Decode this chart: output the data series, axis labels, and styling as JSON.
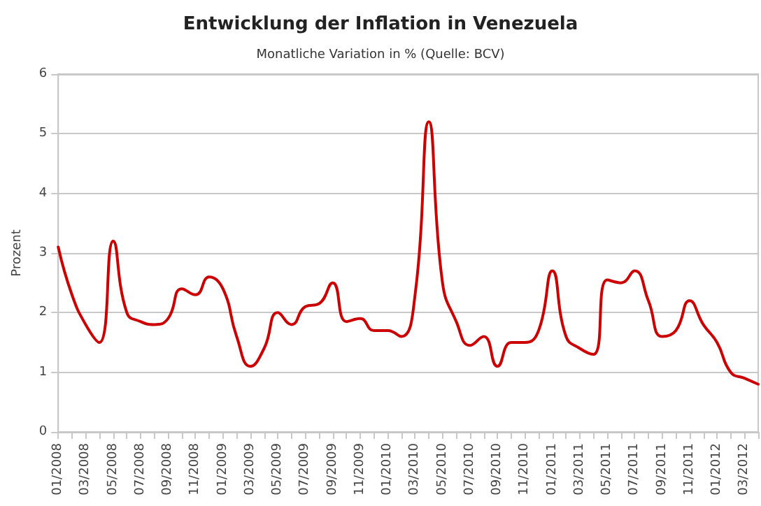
{
  "chart_data": {
    "type": "line",
    "title": "Entwicklung der Inflation in Venezuela",
    "subtitle": "Monatliche Variation in % (Quelle: BCV)",
    "ylabel": "Prozent",
    "categories": [
      "01/2008",
      null,
      "03/2008",
      null,
      "05/2008",
      null,
      "07/2008",
      null,
      "09/2008",
      null,
      "11/2008",
      null,
      "01/2009",
      null,
      "03/2009",
      null,
      "05/2009",
      null,
      "07/2009",
      null,
      "09/2009",
      null,
      "11/2009",
      null,
      "01/2010",
      null,
      "03/2010",
      null,
      "05/2010",
      null,
      "07/2010",
      null,
      "09/2010",
      null,
      "11/2010",
      null,
      "01/2011",
      null,
      "03/2011",
      null,
      "05/2011",
      null,
      "07/2011",
      null,
      "09/2011",
      null,
      "11/2011",
      null,
      "01/2012",
      null,
      "03/2012",
      null
    ],
    "series": [
      {
        "color": "#cc0000",
        "values": [
          3.1,
          2.3,
          1.8,
          1.5,
          3.2,
          2.0,
          1.85,
          1.8,
          1.9,
          2.4,
          2.3,
          2.6,
          2.4,
          1.6,
          1.1,
          1.4,
          2.0,
          1.8,
          2.1,
          2.15,
          2.5,
          1.85,
          1.9,
          1.7,
          1.7,
          1.6,
          2.3,
          5.2,
          2.5,
          1.85,
          1.45,
          1.6,
          1.1,
          1.5,
          1.5,
          1.7,
          2.7,
          1.6,
          1.4,
          1.3,
          2.55,
          2.5,
          2.7,
          2.2,
          1.6,
          1.7,
          2.2,
          1.8,
          1.5,
          1.0,
          0.9,
          0.8
        ]
      }
    ],
    "ylim": [
      0,
      6
    ],
    "yticks": [
      0,
      1,
      2,
      3,
      4,
      5,
      6
    ],
    "grid": "y",
    "marker": "none",
    "line_style": "solid"
  }
}
